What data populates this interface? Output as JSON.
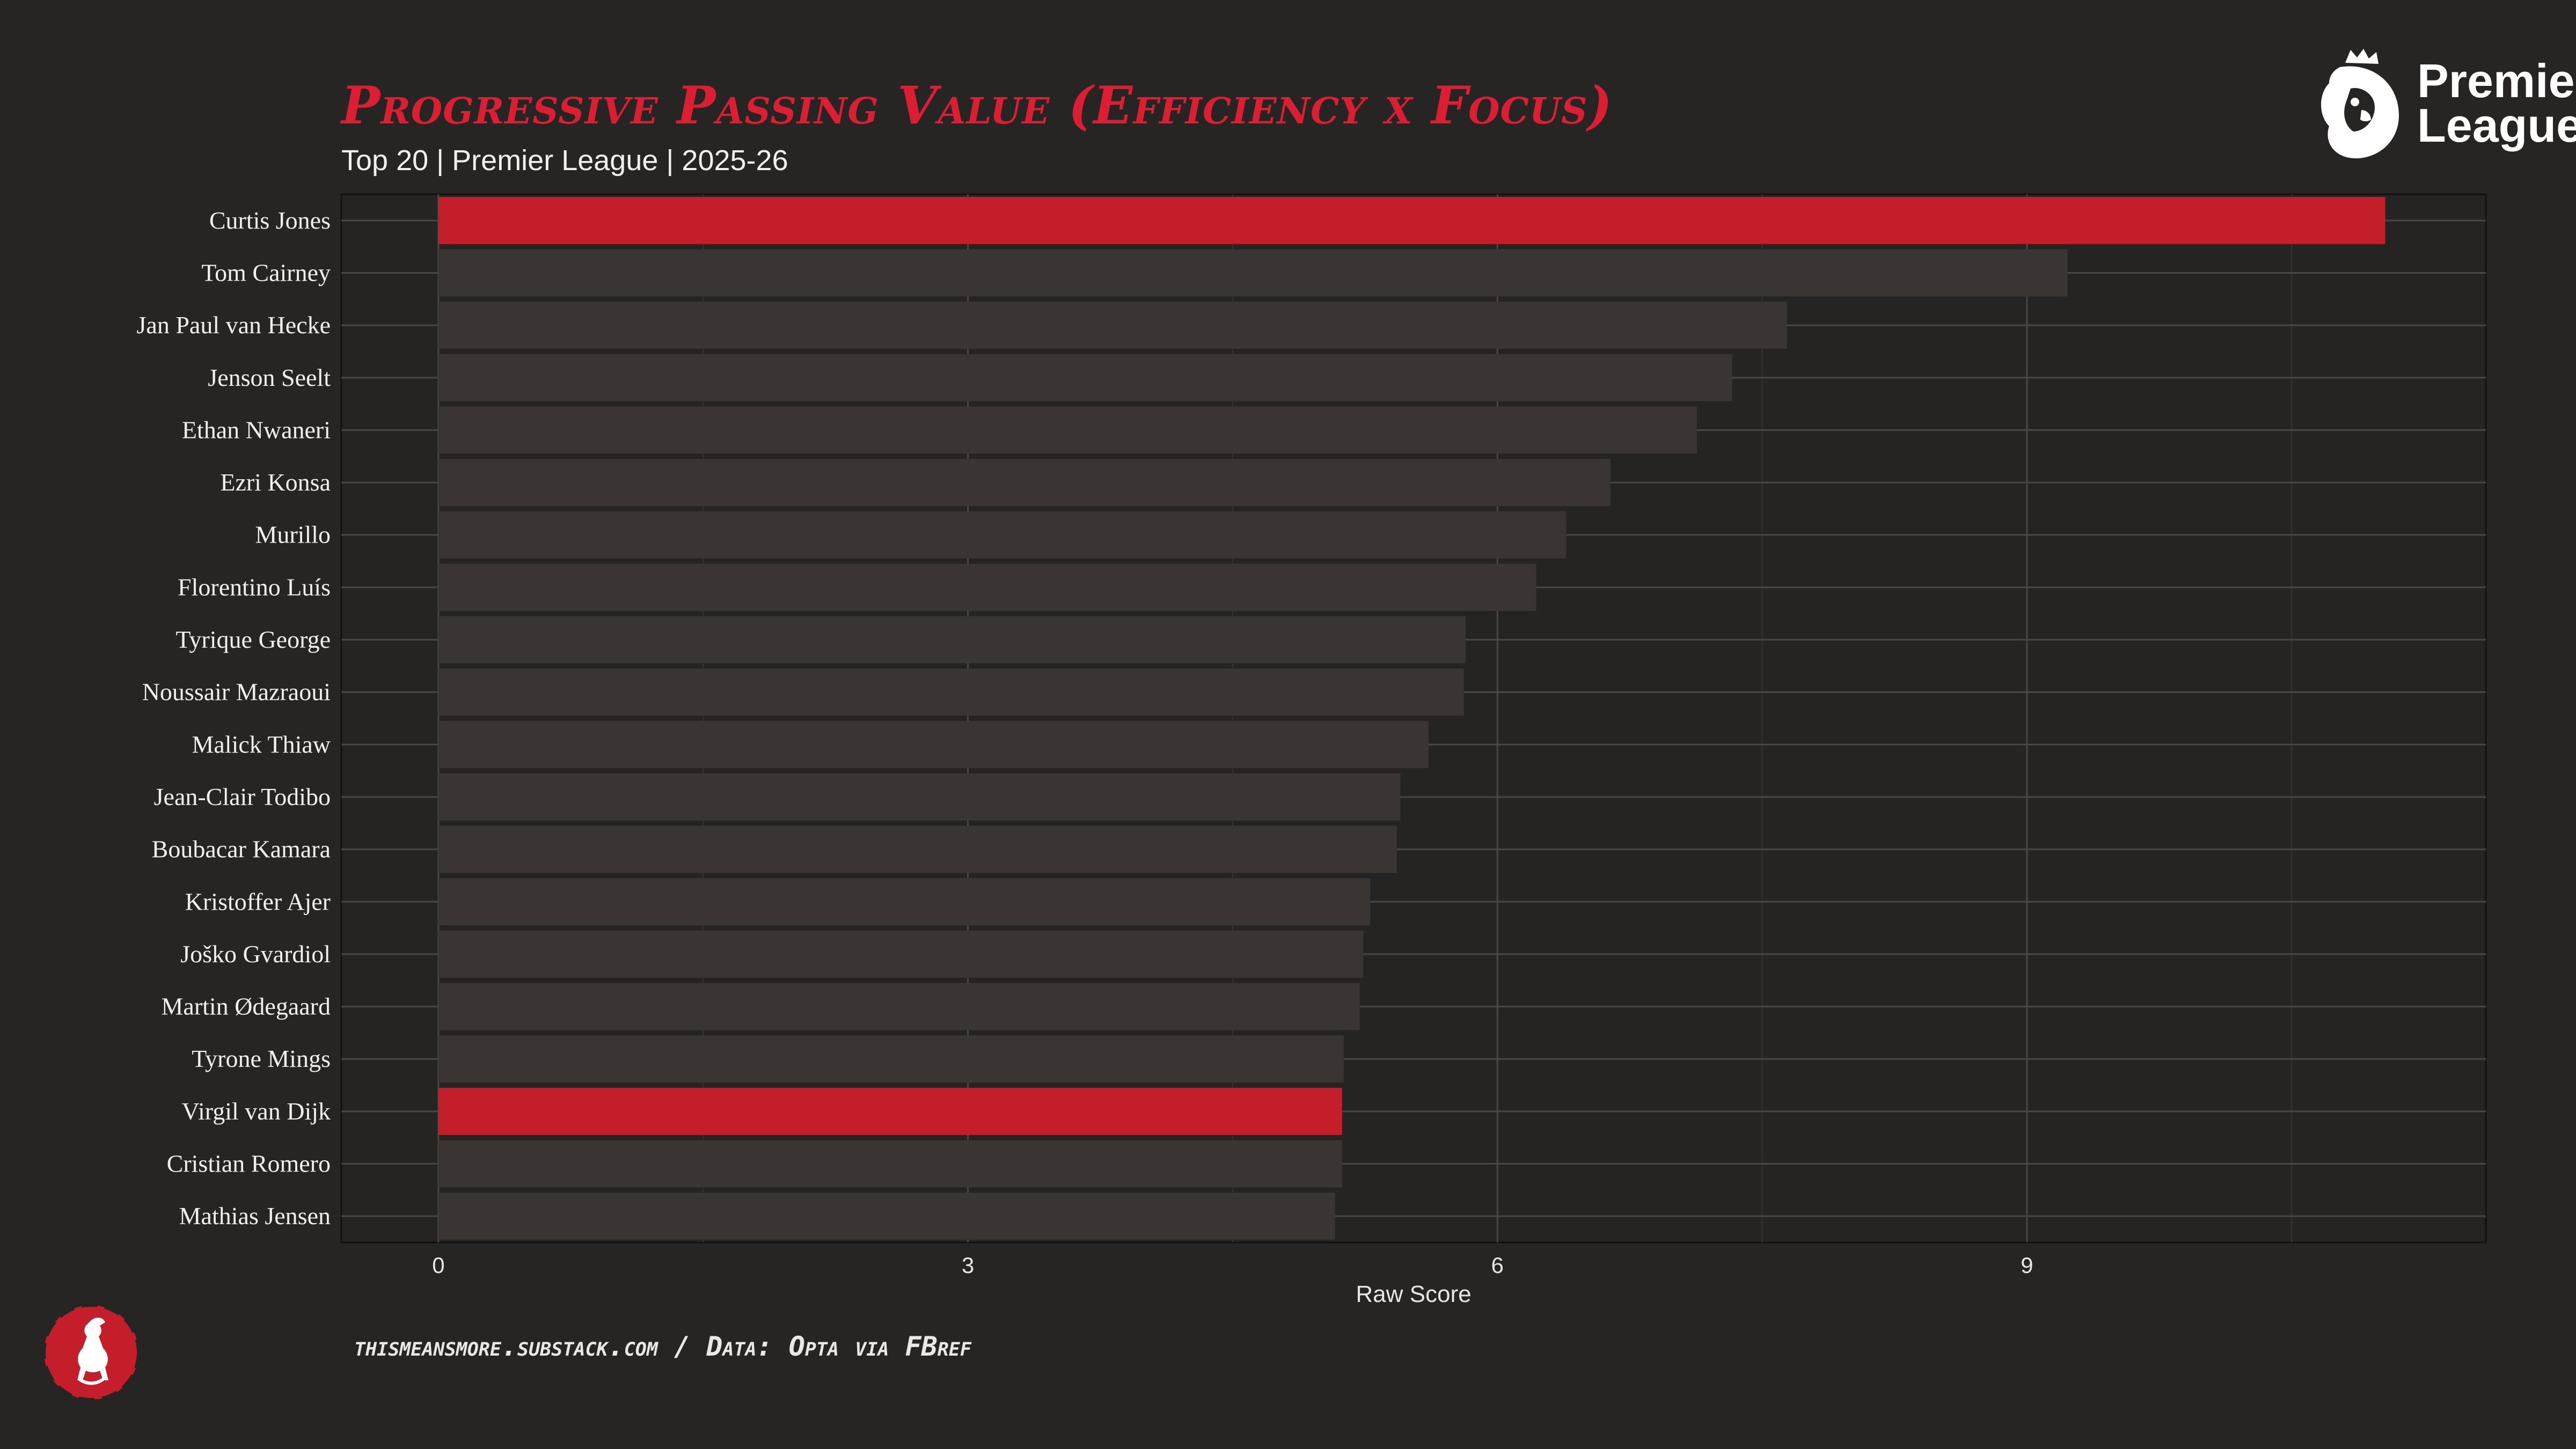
{
  "chart_data": {
    "type": "bar",
    "orientation": "horizontal",
    "title": "Progressive Passing Value (Efficiency x Focus)",
    "subtitle": "Top 20 | Premier League | 2025-26",
    "xlabel": "Raw Score",
    "ylabel": "",
    "xlim": [
      -0.55,
      11.6
    ],
    "xticks": [
      0,
      3,
      6,
      9
    ],
    "grid": true,
    "categories": [
      "Curtis Jones",
      "Tom Cairney",
      "Jan Paul van Hecke",
      "Jenson Seelt",
      "Ethan Nwaneri",
      "Ezri Konsa",
      "Murillo",
      "Florentino Luís",
      "Tyrique George",
      "Noussair Mazraoui",
      "Malick Thiaw",
      "Jean-Clair Todibo",
      "Boubacar Kamara",
      "Kristoffer Ajer",
      "Joško Gvardiol",
      "Martin Ødegaard",
      "Tyrone Mings",
      "Virgil van Dijk",
      "Cristian Romero",
      "Mathias Jensen"
    ],
    "values": [
      11.03,
      9.23,
      7.64,
      7.33,
      7.13,
      6.64,
      6.39,
      6.22,
      5.82,
      5.81,
      5.61,
      5.45,
      5.43,
      5.28,
      5.24,
      5.22,
      5.13,
      5.12,
      5.12,
      5.08
    ],
    "highlighted": [
      "Curtis Jones",
      "Virgil van Dijk"
    ],
    "colors": {
      "highlight": "#c41e2b",
      "default": "#3a3533"
    }
  },
  "source": "thismeansmore.substack.com / Data: Opta via FBref",
  "logo": {
    "words": [
      "Premier",
      "League"
    ]
  }
}
